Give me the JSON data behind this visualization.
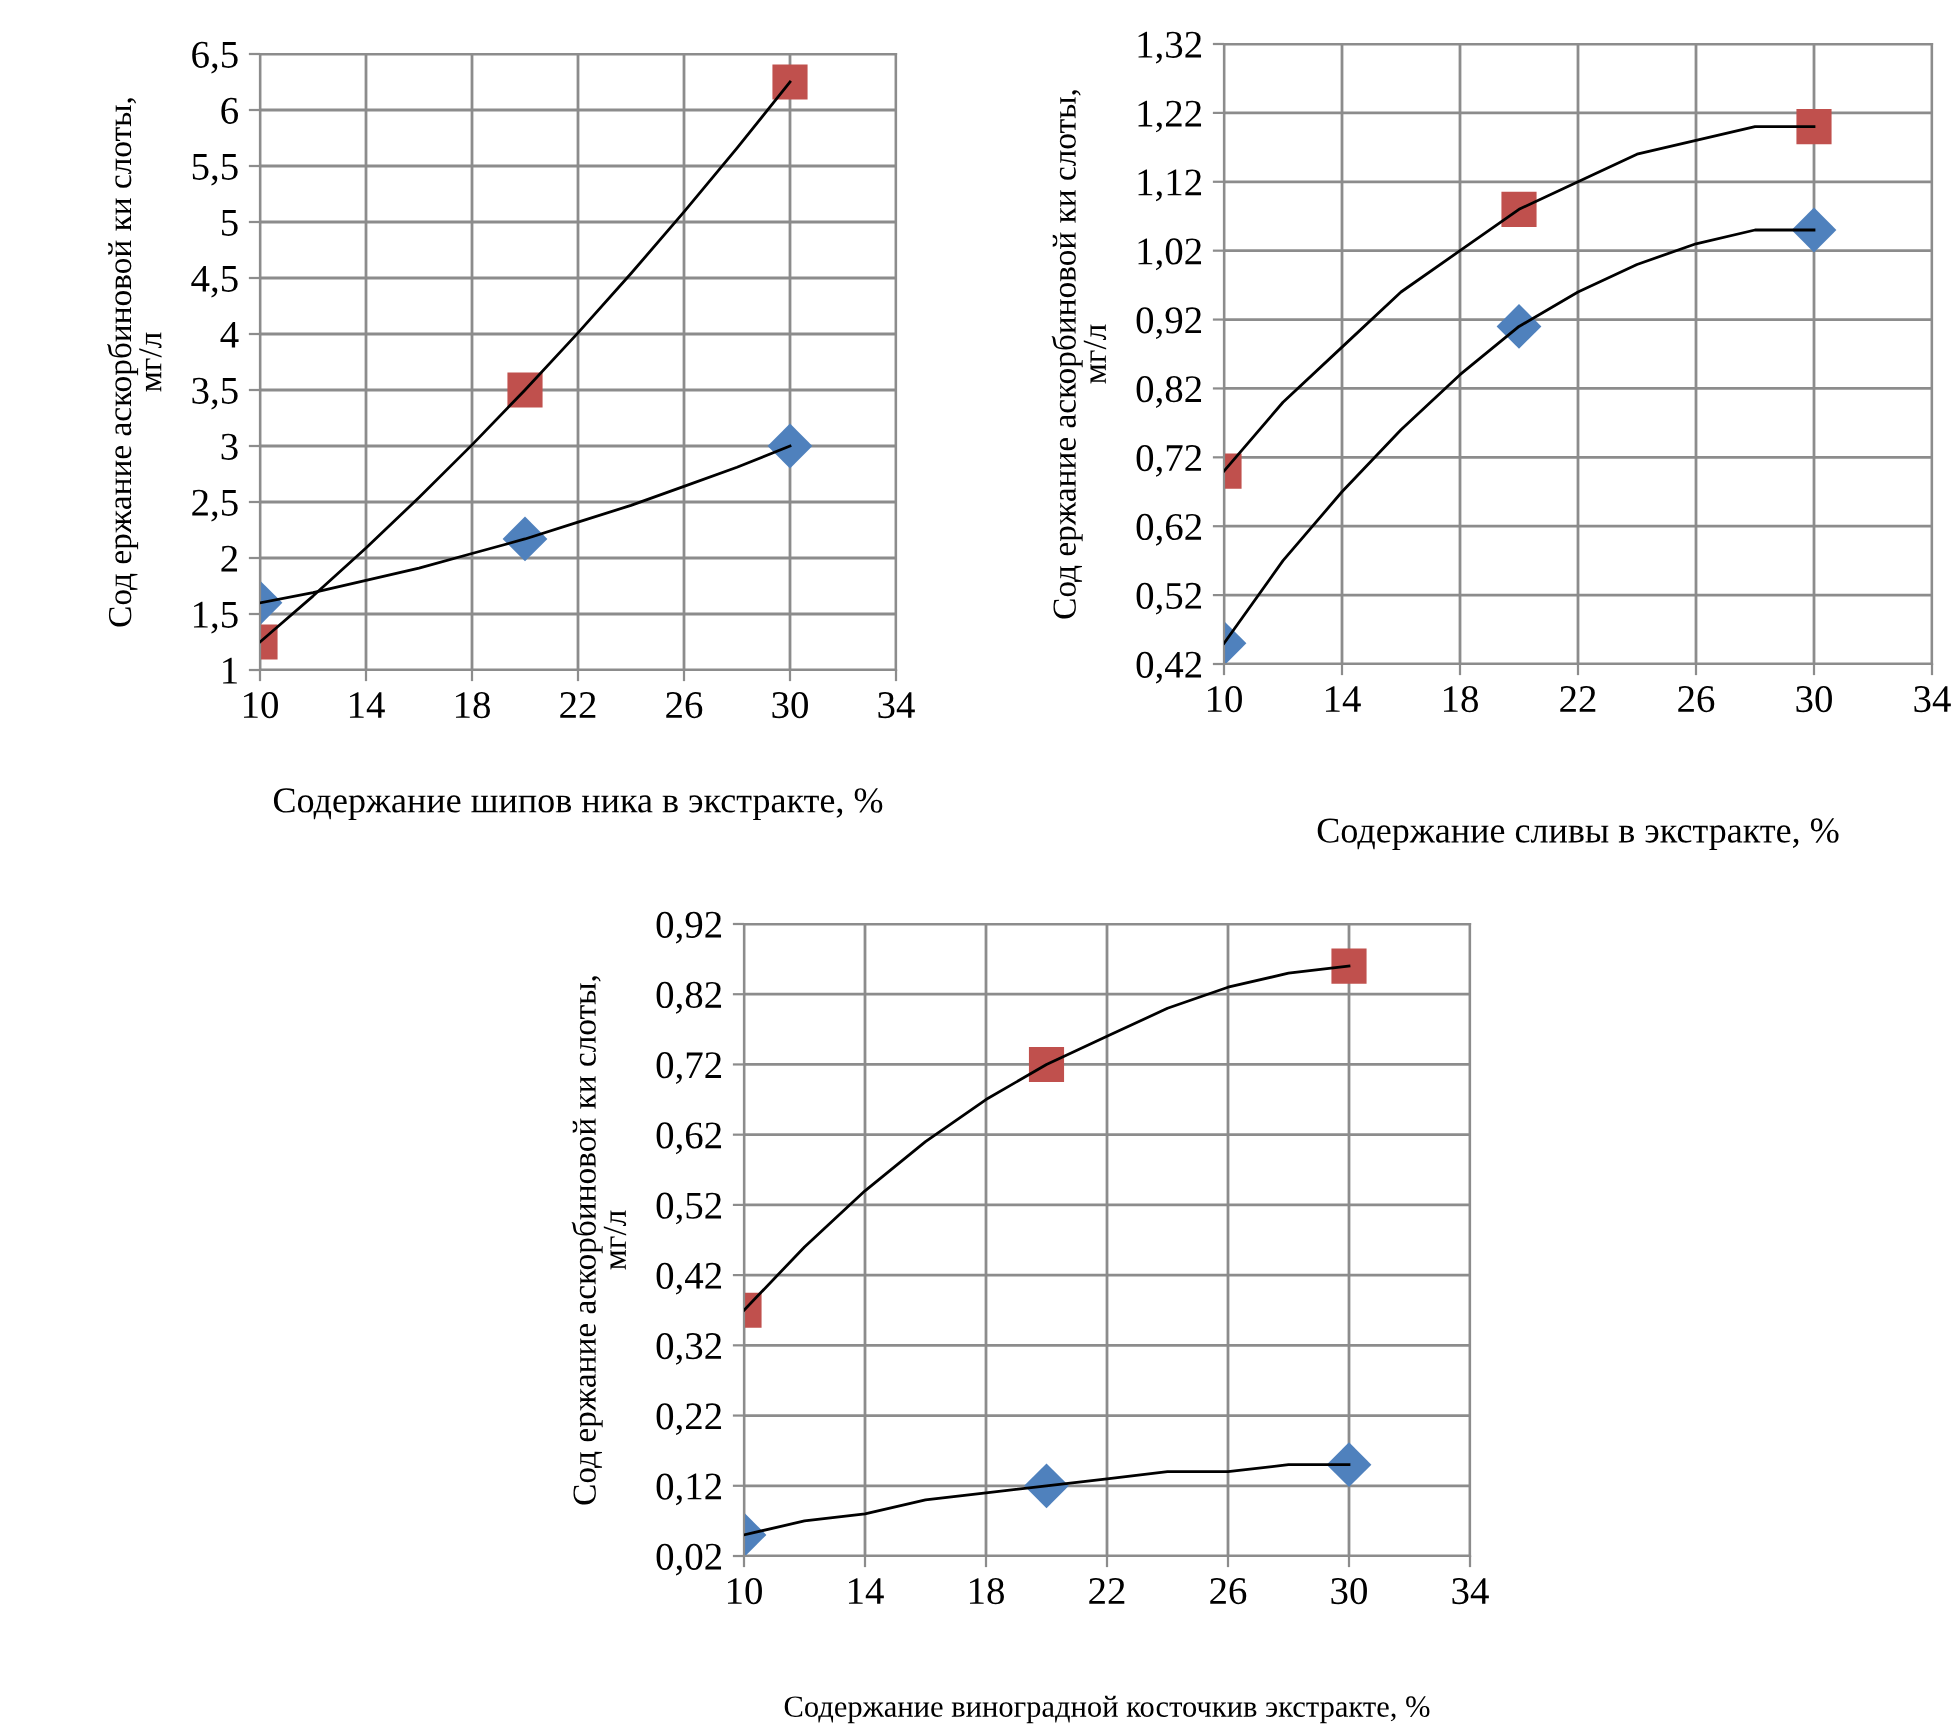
{
  "chart_data": [
    {
      "type": "scatter",
      "xlabel": "Содержание шипов ника в экстракте, %",
      "ylabel": "Сод ержание аскорбиновой ки слоты,\nмг/л",
      "x": [
        10,
        20,
        30
      ],
      "xlim": [
        10,
        34
      ],
      "xticks": [
        10,
        14,
        18,
        22,
        26,
        30,
        34
      ],
      "ylim": [
        1,
        6.5
      ],
      "yticks": [
        1,
        {
          "value": 1.5,
          "label": "1,5"
        },
        2,
        {
          "value": 2.5,
          "label": "2,5"
        },
        3,
        {
          "value": 3.5,
          "label": "3,5"
        },
        4,
        {
          "value": 4.5,
          "label": "4,5"
        },
        5,
        {
          "value": 5.5,
          "label": "5,5"
        },
        6,
        {
          "value": 6.5,
          "label": "6,5"
        }
      ],
      "grid": true,
      "series": [
        {
          "type": "line",
          "color": "#000000",
          "marker": "none",
          "x": [
            10,
            12,
            14,
            16,
            18,
            20,
            22,
            24,
            26,
            28,
            30
          ],
          "values": [
            1.6,
            1.69,
            1.8,
            1.91,
            2.04,
            2.17,
            2.32,
            2.47,
            2.64,
            2.81,
            3.0
          ]
        },
        {
          "type": "line",
          "color": "#000000",
          "marker": "none",
          "x": [
            10,
            12,
            14,
            16,
            18,
            20,
            22,
            24,
            26,
            28,
            30
          ],
          "values": [
            1.25,
            1.66,
            2.09,
            2.54,
            3.01,
            3.5,
            4.01,
            4.54,
            5.09,
            5.66,
            6.25
          ]
        },
        {
          "type": "scatter",
          "color": "#4f81bd",
          "marker": "diamond",
          "values": [
            1.6,
            2.17,
            3.0
          ]
        },
        {
          "type": "scatter",
          "color": "#c0504d",
          "marker": "square",
          "values": [
            1.25,
            3.5,
            6.25
          ]
        }
      ]
    },
    {
      "type": "scatter",
      "xlabel": "Содержание сливы в экстракте, %",
      "ylabel": "Сод ержание аскорбиновой ки слоты,\nмг/л",
      "x": [
        10,
        20,
        30
      ],
      "xlim": [
        10,
        34
      ],
      "xticks": [
        10,
        14,
        18,
        22,
        26,
        30,
        34
      ],
      "ylim": [
        0.42,
        1.32
      ],
      "yticks": [
        {
          "value": 0.42,
          "label": "0,42"
        },
        {
          "value": 0.52,
          "label": "0,52"
        },
        {
          "value": 0.62,
          "label": "0,62"
        },
        {
          "value": 0.72,
          "label": "0,72"
        },
        {
          "value": 0.82,
          "label": "0,82"
        },
        {
          "value": 0.92,
          "label": "0,92"
        },
        {
          "value": 1.02,
          "label": "1,02"
        },
        {
          "value": 1.12,
          "label": "1,12"
        },
        {
          "value": 1.22,
          "label": "1,22"
        },
        {
          "value": 1.32,
          "label": "1,32"
        }
      ],
      "grid": true,
      "series": [
        {
          "type": "line",
          "color": "#000000",
          "marker": "none",
          "x": [
            10,
            12,
            14,
            16,
            18,
            20,
            22,
            24,
            26,
            28,
            30
          ],
          "values": [
            0.45,
            0.57,
            0.67,
            0.76,
            0.84,
            0.91,
            0.96,
            1.0,
            1.03,
            1.05,
            1.05
          ]
        },
        {
          "type": "line",
          "color": "#000000",
          "marker": "none",
          "x": [
            10,
            12,
            14,
            16,
            18,
            20,
            22,
            24,
            26,
            28,
            30
          ],
          "values": [
            0.7,
            0.8,
            0.88,
            0.96,
            1.02,
            1.08,
            1.12,
            1.16,
            1.18,
            1.2,
            1.2
          ]
        },
        {
          "type": "scatter",
          "color": "#4f81bd",
          "marker": "diamond",
          "values": [
            0.45,
            0.91,
            1.05
          ]
        },
        {
          "type": "scatter",
          "color": "#c0504d",
          "marker": "square",
          "values": [
            0.7,
            1.08,
            1.2
          ]
        }
      ]
    },
    {
      "type": "scatter",
      "xlabel": "Содержание виноградной косточкив экстракте, %",
      "ylabel": "Сод ержание аскорбиновой ки слоты,\nмг/л",
      "x": [
        10,
        20,
        30
      ],
      "xlim": [
        10,
        34
      ],
      "xticks": [
        10,
        14,
        18,
        22,
        26,
        30,
        34
      ],
      "ylim": [
        0.02,
        0.92
      ],
      "yticks": [
        {
          "value": 0.02,
          "label": "0,02"
        },
        {
          "value": 0.12,
          "label": "0,12"
        },
        {
          "value": 0.22,
          "label": "0,22"
        },
        {
          "value": 0.32,
          "label": "0,32"
        },
        {
          "value": 0.42,
          "label": "0,42"
        },
        {
          "value": 0.52,
          "label": "0,52"
        },
        {
          "value": 0.62,
          "label": "0,62"
        },
        {
          "value": 0.72,
          "label": "0,72"
        },
        {
          "value": 0.82,
          "label": "0,82"
        },
        {
          "value": 0.92,
          "label": "0,92"
        }
      ],
      "grid": true,
      "series": [
        {
          "type": "line",
          "color": "#000000",
          "marker": "none",
          "x": [
            10,
            12,
            14,
            16,
            18,
            20,
            22,
            24,
            26,
            28,
            30
          ],
          "values": [
            0.05,
            0.07,
            0.08,
            0.1,
            0.11,
            0.12,
            0.13,
            0.14,
            0.14,
            0.15,
            0.15
          ]
        },
        {
          "type": "line",
          "color": "#000000",
          "marker": "none",
          "x": [
            10,
            12,
            14,
            16,
            18,
            20,
            22,
            24,
            26,
            28,
            30
          ],
          "values": [
            0.37,
            0.46,
            0.54,
            0.61,
            0.67,
            0.72,
            0.76,
            0.8,
            0.83,
            0.85,
            0.86
          ]
        },
        {
          "type": "scatter",
          "color": "#4f81bd",
          "marker": "diamond",
          "values": [
            0.05,
            0.12,
            0.15
          ]
        },
        {
          "type": "scatter",
          "color": "#c0504d",
          "marker": "square",
          "values": [
            0.37,
            0.72,
            0.86
          ]
        }
      ]
    }
  ]
}
